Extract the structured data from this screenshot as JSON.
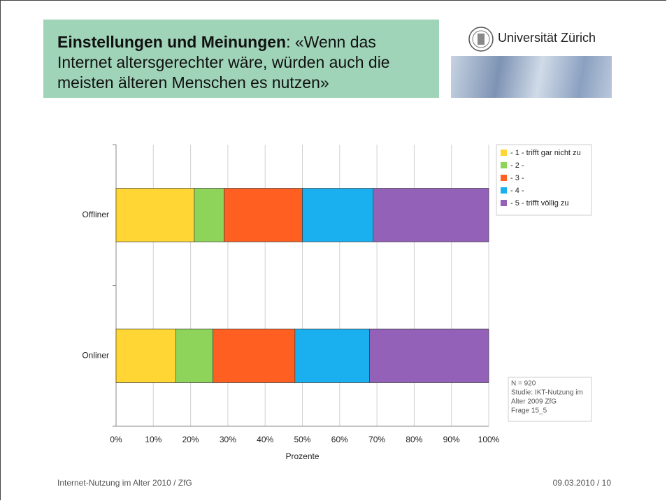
{
  "header": {
    "title_bold": "Einstellungen und Meinungen",
    "title_rest": ": «Wenn das Internet altersgerechter wäre, würden auch die meisten älteren Menschen es nutzen»",
    "logo": "Universität Zürich"
  },
  "chart_data": {
    "type": "bar",
    "orientation": "horizontal",
    "stacked": true,
    "categories": [
      "Offliner",
      "Onliner"
    ],
    "series": [
      {
        "name": "- 1 - trifft gar nicht zu",
        "color": "#ffd633",
        "values": [
          21,
          16
        ]
      },
      {
        "name": "- 2 -",
        "color": "#8fd45a",
        "values": [
          8,
          10
        ]
      },
      {
        "name": "- 3 -",
        "color": "#ff5f21",
        "values": [
          21,
          22
        ]
      },
      {
        "name": "- 4 -",
        "color": "#1ab0f0",
        "values": [
          19,
          20
        ]
      },
      {
        "name": "- 5 - trifft völlig zu",
        "color": "#9461b8",
        "values": [
          31,
          32
        ]
      }
    ],
    "xlim": [
      0,
      100
    ],
    "xticks": [
      {
        "value": 0,
        "label": "0%"
      },
      {
        "value": 10,
        "label": "10%"
      },
      {
        "value": 20,
        "label": "20%"
      },
      {
        "value": 30,
        "label": "30%"
      },
      {
        "value": 40,
        "label": "40%"
      },
      {
        "value": 50,
        "label": "50%"
      },
      {
        "value": 60,
        "label": "60%"
      },
      {
        "value": 70,
        "label": "70%"
      },
      {
        "value": 80,
        "label": "80%"
      },
      {
        "value": 90,
        "label": "90%"
      },
      {
        "value": 100,
        "label": "100%"
      }
    ],
    "xlabel": "Prozente",
    "grid": true,
    "legend": "right",
    "note": [
      "N = 920",
      "Studie: IKT-Nutzung im",
      "Alter 2009 ZfG",
      "Frage 15_5"
    ]
  },
  "footer": {
    "left": "Internet-Nutzung im Alter 2010 / ZfG",
    "right": "09.03.2010  /  10"
  }
}
